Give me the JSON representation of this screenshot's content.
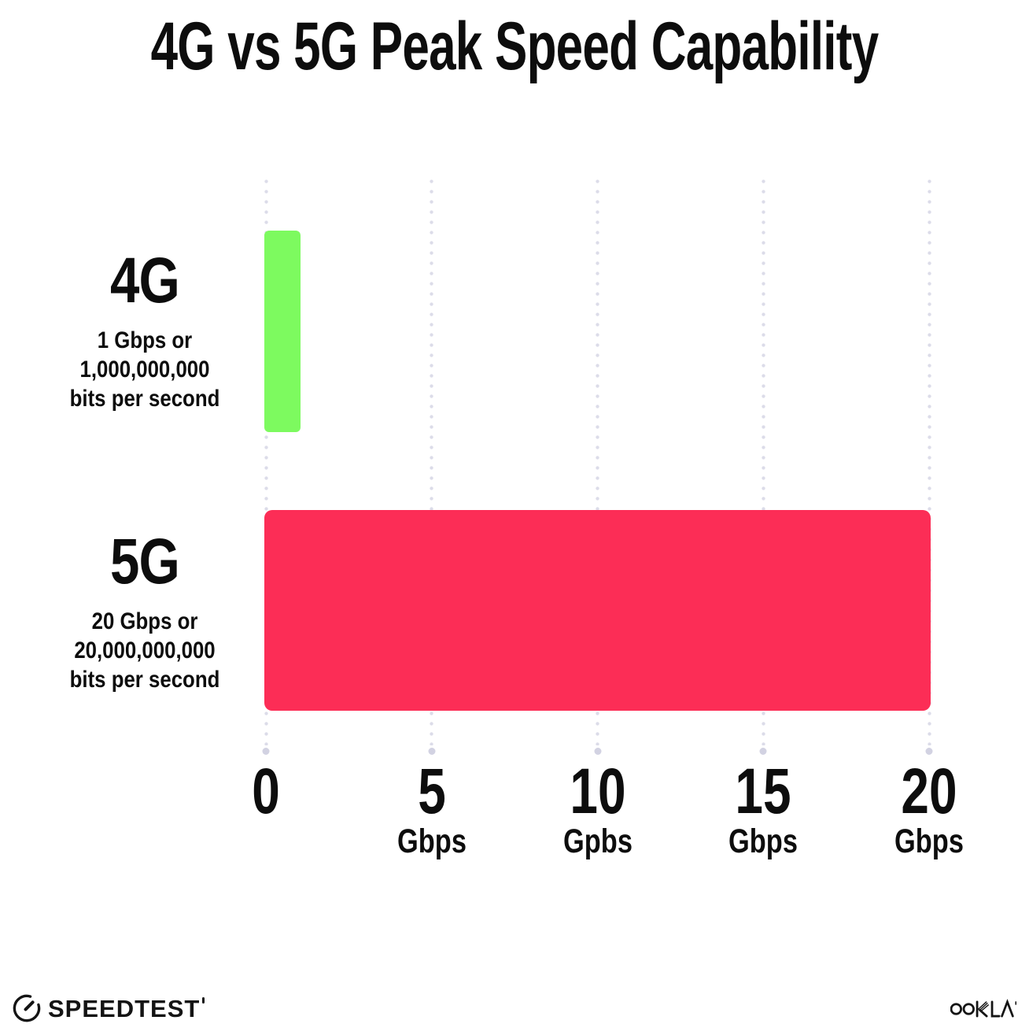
{
  "page": {
    "background": "#ffffff"
  },
  "title": "4G vs 5G Peak Speed Capability",
  "chart_data": {
    "type": "bar",
    "orientation": "horizontal",
    "title": "4G vs 5G Peak Speed Capability",
    "categories": [
      "4G",
      "5G"
    ],
    "values": [
      1,
      20
    ],
    "xlim": [
      0,
      20
    ],
    "grid": "dotted-vertical-gridlines-with-end-dots",
    "legend": "none",
    "x_ticks": [
      {
        "label": "0",
        "unit": ""
      },
      {
        "label": "5",
        "unit": "Gbps"
      },
      {
        "label": "10",
        "unit": "Gpbs"
      },
      {
        "label": "15",
        "unit": "Gbps"
      },
      {
        "label": "20",
        "unit": "Gbps"
      }
    ],
    "series": [
      {
        "name": "4G",
        "value_gbps": 1,
        "bar_color": "#7DFA5F",
        "sublabel_lines": [
          "1 Gbps or",
          "1,000,000,000",
          "bits per second"
        ]
      },
      {
        "name": "5G",
        "value_gbps": 20,
        "bar_color": "#FC2D56",
        "sublabel_lines": [
          "20 Gbps or",
          "20,000,000,000",
          "bits per second"
        ]
      }
    ],
    "colors": {
      "grid_dot": "#dcdce9",
      "axis_end_dot": "#d2d2e2",
      "text": "#0d0d0d"
    }
  },
  "footer": {
    "speedtest_logo_text": "SPEEDTEST",
    "ookla_logo_text": "OOKLA"
  }
}
